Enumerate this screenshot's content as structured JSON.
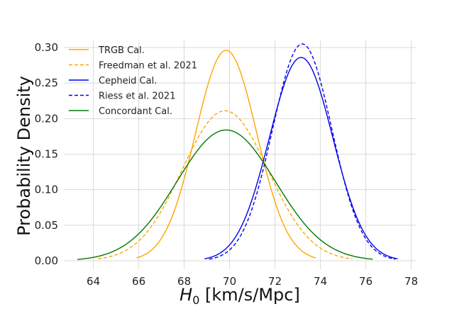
{
  "chart_data": {
    "type": "line",
    "title": "",
    "xlabel": {
      "symbol": "H",
      "subscript": "0",
      "units": " [km/s/Mpc]"
    },
    "ylabel": "Probability Density",
    "xlim": [
      62.7,
      78.2
    ],
    "ylim": [
      -0.012,
      0.31
    ],
    "xticks": [
      64,
      66,
      68,
      70,
      72,
      74,
      76,
      78
    ],
    "yticks": [
      0.0,
      0.05,
      0.1,
      0.15,
      0.2,
      0.25,
      0.3
    ],
    "grid": true,
    "legend_position": "top-left",
    "series": [
      {
        "name": "TRGB Cal.",
        "color": "#FFA500",
        "style": "solid",
        "mean": 69.85,
        "peak": 0.296,
        "xrange": [
          65.9,
          73.8
        ]
      },
      {
        "name": "Freedman et al. 2021",
        "color": "#FFA500",
        "style": "dashed",
        "mean": 69.8,
        "peak": 0.211,
        "xrange": [
          64.2,
          75.4
        ]
      },
      {
        "name": "Cepheid Cal.",
        "color": "#0000EE",
        "style": "solid",
        "mean": 73.15,
        "peak": 0.286,
        "xrange": [
          68.9,
          77.4
        ]
      },
      {
        "name": "Riess et al. 2021",
        "color": "#0000EE",
        "style": "dashed",
        "mean": 73.2,
        "peak": 0.305,
        "xrange": [
          69.1,
          77.3
        ]
      },
      {
        "name": "Concordant Cal.",
        "color": "#007A00",
        "style": "solid",
        "mean": 69.85,
        "peak": 0.184,
        "xrange": [
          63.3,
          76.3
        ]
      }
    ]
  }
}
